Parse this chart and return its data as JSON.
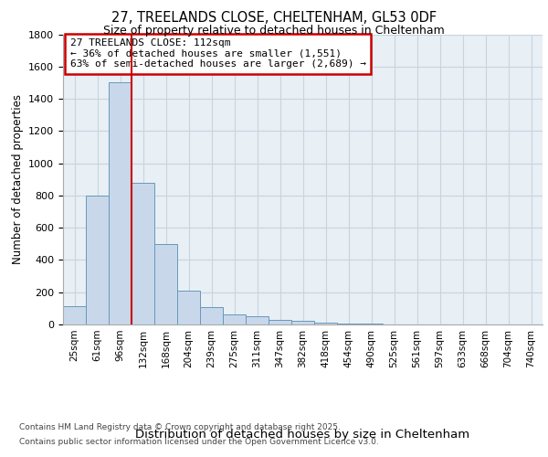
{
  "title1": "27, TREELANDS CLOSE, CHELTENHAM, GL53 0DF",
  "title2": "Size of property relative to detached houses in Cheltenham",
  "xlabel": "Distribution of detached houses by size in Cheltenham",
  "ylabel": "Number of detached properties",
  "categories": [
    "25sqm",
    "61sqm",
    "96sqm",
    "132sqm",
    "168sqm",
    "204sqm",
    "239sqm",
    "275sqm",
    "311sqm",
    "347sqm",
    "382sqm",
    "418sqm",
    "454sqm",
    "490sqm",
    "525sqm",
    "561sqm",
    "597sqm",
    "633sqm",
    "668sqm",
    "704sqm",
    "740sqm"
  ],
  "values": [
    115,
    800,
    1500,
    880,
    500,
    210,
    110,
    65,
    50,
    30,
    20,
    10,
    5,
    3,
    2,
    1,
    1,
    0,
    2,
    0,
    0
  ],
  "bar_color": "#c8d8ea",
  "bar_edge_color": "#6699bb",
  "grid_color": "#c8d4e0",
  "background_color": "#e8eff5",
  "annotation_title": "27 TREELANDS CLOSE: 112sqm",
  "annotation_line1": "← 36% of detached houses are smaller (1,551)",
  "annotation_line2": "63% of semi-detached houses are larger (2,689) →",
  "annotation_box_color": "#ffffff",
  "annotation_box_edge": "#cc0000",
  "footer1": "Contains HM Land Registry data © Crown copyright and database right 2025.",
  "footer2": "Contains public sector information licensed under the Open Government Licence v3.0.",
  "ylim": [
    0,
    1800
  ],
  "yticks": [
    0,
    200,
    400,
    600,
    800,
    1000,
    1200,
    1400,
    1600,
    1800
  ],
  "red_line_x": 2.5
}
